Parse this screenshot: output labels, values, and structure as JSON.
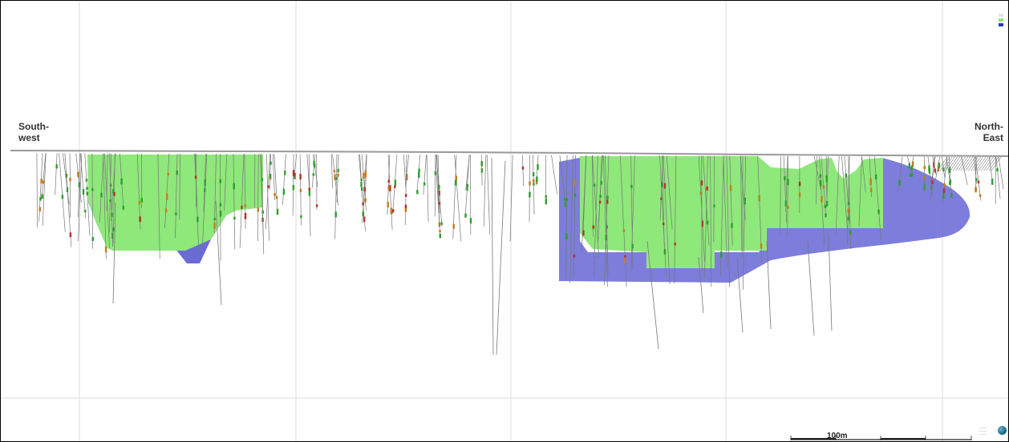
{
  "labels": {
    "southwest": "South-\nwest",
    "northeast": "North-\nEast"
  },
  "scale_bar": {
    "label": "100m"
  },
  "colors": {
    "green_zone": "#8fe87a",
    "blue_zone": "#6b6bd6",
    "drillhole": "#777777",
    "surface": "#999999",
    "grid": "#dddddd",
    "border": "#000000"
  },
  "legend": {
    "swatch_colors": [
      "#e6e6e6",
      "#8fe87a",
      "#3333cc"
    ]
  },
  "icons": {
    "logo": "globe-logo-icon"
  }
}
